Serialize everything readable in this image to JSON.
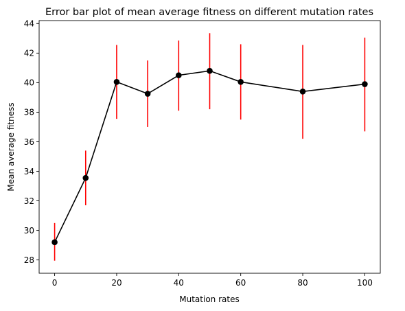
{
  "chart_data": {
    "type": "line",
    "title": "Error bar plot of mean average fitness on different mutation rates",
    "xlabel": "Mutation rates",
    "ylabel": "Mean average fitness",
    "x": [
      0,
      10,
      20,
      30,
      40,
      50,
      60,
      80,
      100
    ],
    "series": [
      {
        "values": [
          29.2,
          33.55,
          40.05,
          39.25,
          40.5,
          40.8,
          40.05,
          39.4,
          39.9
        ],
        "err_low": [
          27.95,
          31.7,
          37.55,
          37.0,
          38.1,
          38.2,
          37.5,
          36.2,
          36.7
        ],
        "err_high": [
          30.5,
          35.4,
          42.55,
          41.5,
          42.85,
          43.35,
          42.6,
          42.55,
          43.05
        ],
        "line_color": "#000000",
        "marker_color": "#000000",
        "error_color": "#ff0000"
      }
    ],
    "xlim": [
      -5,
      105
    ],
    "ylim": [
      27.1,
      44.2
    ],
    "xticks": [
      0,
      20,
      40,
      60,
      80,
      100
    ],
    "yticks": [
      28,
      30,
      32,
      34,
      36,
      38,
      40,
      42,
      44
    ],
    "grid": false,
    "legend": "none"
  }
}
